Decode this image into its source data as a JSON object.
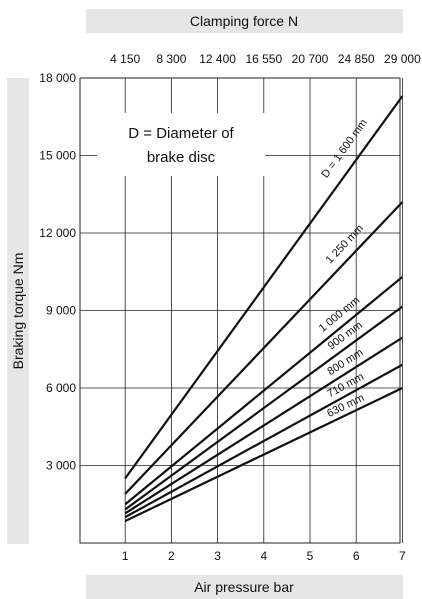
{
  "chart_data": {
    "type": "line",
    "title": "Clamping force N",
    "xlabel": "Air pressure bar",
    "ylabel": "Braking torque Nm",
    "annotation_lines": [
      "D = Diameter of",
      "brake disc"
    ],
    "x_ticks": [
      "1",
      "2",
      "3",
      "4",
      "5",
      "6",
      "7"
    ],
    "y_ticks": [
      {
        "value": 3000,
        "label": "3 000"
      },
      {
        "value": 6000,
        "label": "6 000"
      },
      {
        "value": 9000,
        "label": "9 000"
      },
      {
        "value": 12000,
        "label": "12 000"
      },
      {
        "value": 15000,
        "label": "15 000"
      },
      {
        "value": 18000,
        "label": "18 000"
      }
    ],
    "top_ticks": [
      "4 150",
      "8 300",
      "12 400",
      "16 550",
      "20 700",
      "24 850",
      "29 000"
    ],
    "xlim": [
      0,
      7
    ],
    "ylim": [
      0,
      18000
    ],
    "grid": true,
    "series": [
      {
        "name": "D = 1 600 mm",
        "x": [
          1,
          7
        ],
        "y": [
          2500,
          17300
        ]
      },
      {
        "name": "1 250 mm",
        "x": [
          1,
          7
        ],
        "y": [
          1900,
          13200
        ]
      },
      {
        "name": "1 000 mm",
        "x": [
          1,
          7
        ],
        "y": [
          1500,
          10300
        ]
      },
      {
        "name": "900 mm",
        "x": [
          1,
          7
        ],
        "y": [
          1300,
          9150
        ]
      },
      {
        "name": "800 mm",
        "x": [
          1,
          7
        ],
        "y": [
          1150,
          7950
        ]
      },
      {
        "name": "710 mm",
        "x": [
          1,
          7
        ],
        "y": [
          1000,
          6900
        ]
      },
      {
        "name": "630 mm",
        "x": [
          1,
          7
        ],
        "y": [
          850,
          6000
        ]
      }
    ]
  }
}
